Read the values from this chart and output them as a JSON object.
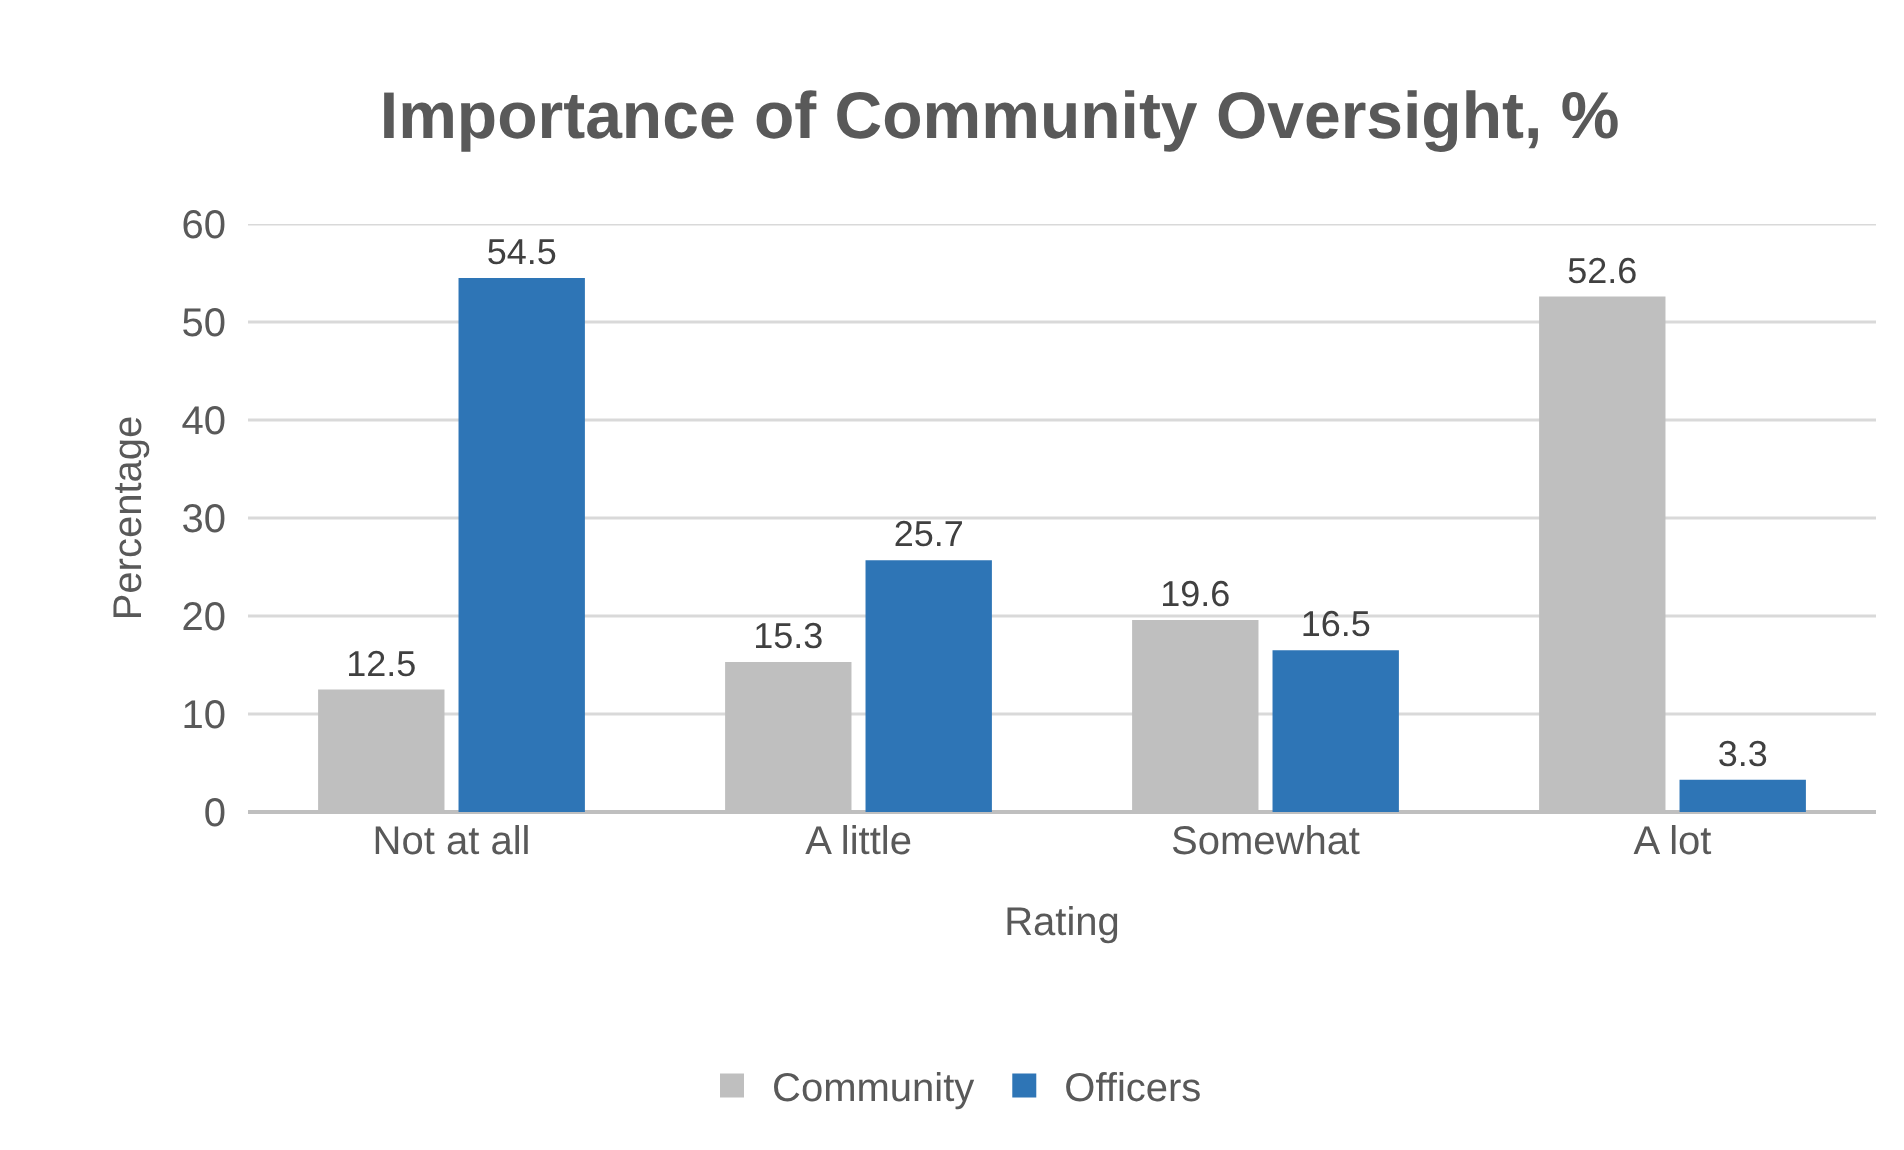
{
  "chart_data": {
    "type": "bar",
    "title": "Importance of Community Oversight, %",
    "xlabel": "Rating",
    "ylabel": "Percentage",
    "categories": [
      "Not at all",
      "A little",
      "Somewhat",
      "A lot"
    ],
    "series": [
      {
        "name": "Community",
        "color": "#bfbfbf",
        "values": [
          12.5,
          15.3,
          19.6,
          52.6
        ]
      },
      {
        "name": "Officers",
        "color": "#2e75b6",
        "values": [
          54.5,
          25.7,
          16.5,
          3.3
        ]
      }
    ],
    "ylim": [
      0,
      60
    ],
    "yticks": [
      0,
      10,
      20,
      30,
      40,
      50,
      60
    ],
    "grid": "y",
    "legend": "bottom",
    "data_labels": true
  }
}
